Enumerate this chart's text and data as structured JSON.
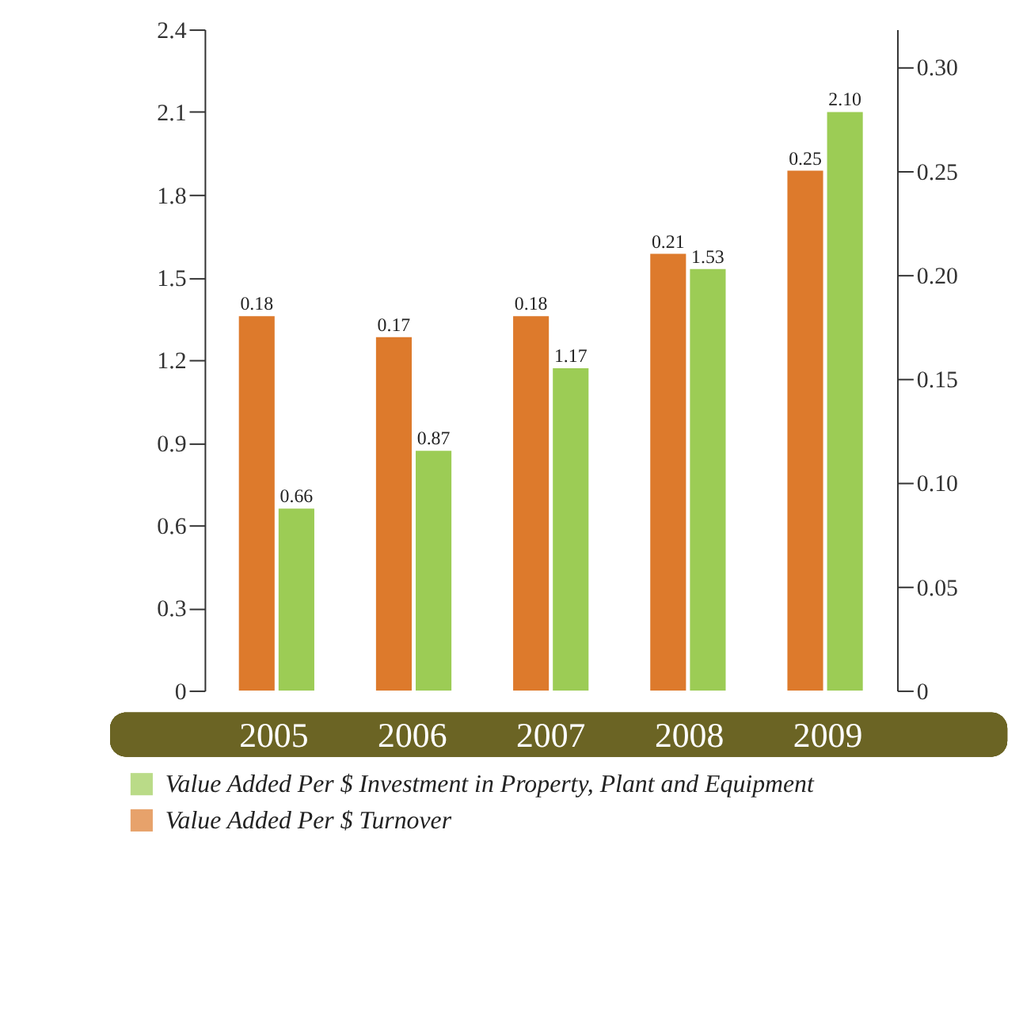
{
  "chart_data": {
    "type": "bar",
    "categories": [
      "2005",
      "2006",
      "2007",
      "2008",
      "2009"
    ],
    "series": [
      {
        "name": "Value Added Per $ Turnover",
        "color": "#dd7a2c",
        "axis": "y2",
        "values": [
          0.18,
          0.17,
          0.18,
          0.21,
          0.25
        ],
        "value_labels": [
          "0.18",
          "0.17",
          "0.18",
          "0.21",
          "0.25"
        ]
      },
      {
        "name": "Value Added Per $ Investment in Property, Plant and Equipment",
        "color": "#9ccc55",
        "values": [
          0.66,
          0.87,
          1.17,
          1.53,
          2.1
        ],
        "value_labels": [
          "0.66",
          "0.87",
          "1.17",
          "1.53",
          "2.10"
        ]
      }
    ],
    "ylim": [
      0,
      2.4
    ],
    "yticks": [
      0,
      0.3,
      0.6,
      0.9,
      1.2,
      1.5,
      1.8,
      2.1,
      2.4
    ],
    "y2lim": [
      0,
      0.318
    ],
    "y2ticks": [
      0,
      0.05,
      {
        "value": 0.1,
        "label": "0.10"
      },
      0.15,
      {
        "value": 0.2,
        "label": "0.20"
      },
      0.25,
      {
        "value": 0.3,
        "label": "0.30"
      }
    ],
    "grid": false,
    "legend": "bottom"
  }
}
